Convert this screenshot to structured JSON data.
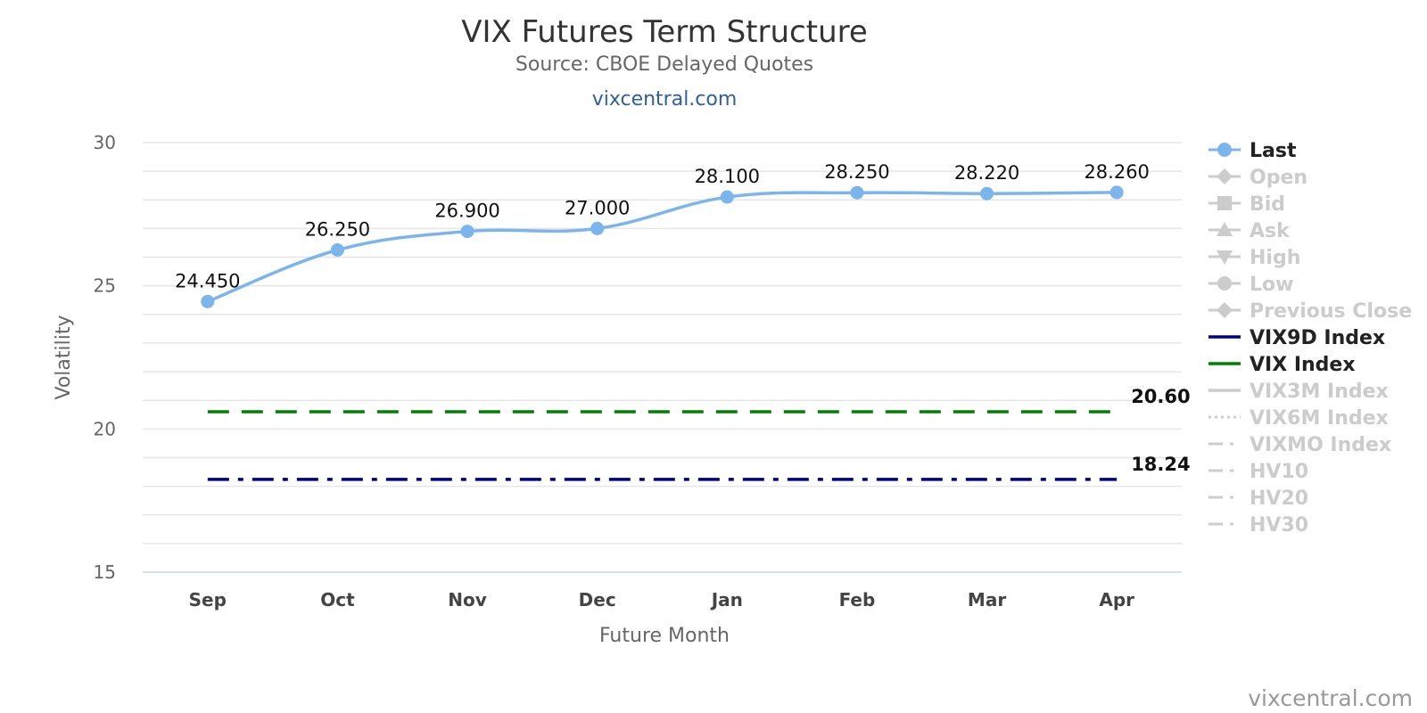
{
  "header": {
    "title": "VIX Futures Term Structure",
    "subtitle": "Source: CBOE Delayed Quotes",
    "link": "vixcentral.com"
  },
  "credit": "vixcentral.com",
  "chart_data": {
    "type": "line",
    "title": "VIX Futures Term Structure",
    "subtitle": "Source: CBOE Delayed Quotes",
    "xlabel": "Future Month",
    "ylabel": "Volatility",
    "categories": [
      "Sep",
      "Oct",
      "Nov",
      "Dec",
      "Jan",
      "Feb",
      "Mar",
      "Apr"
    ],
    "ylim": [
      15,
      30
    ],
    "yticks": [
      15,
      20,
      25,
      30
    ],
    "grid": true,
    "legend_position": "right",
    "series": [
      {
        "name": "Last",
        "values": [
          24.45,
          26.25,
          26.9,
          27.0,
          28.1,
          28.25,
          28.22,
          28.26
        ],
        "labels": [
          "24.450",
          "26.250",
          "26.900",
          "27.000",
          "28.100",
          "28.250",
          "28.220",
          "28.260"
        ],
        "color": "#7cb5ec",
        "style": "spline-markers"
      }
    ],
    "reference_lines": [
      {
        "name": "VIX Index",
        "value": 20.6,
        "label": "20.60",
        "color": "#008000",
        "dash": "dash"
      },
      {
        "name": "VIX9D Index",
        "value": 18.24,
        "label": "18.24",
        "color": "#000080",
        "dash": "dashdot"
      }
    ],
    "legend": [
      {
        "name": "Last",
        "symbol": "circle",
        "color": "#7cb5ec",
        "active": true
      },
      {
        "name": "Open",
        "symbol": "diamond",
        "color": "#cccccc",
        "active": false
      },
      {
        "name": "Bid",
        "symbol": "square",
        "color": "#cccccc",
        "active": false
      },
      {
        "name": "Ask",
        "symbol": "triangle",
        "color": "#cccccc",
        "active": false
      },
      {
        "name": "High",
        "symbol": "triangle-down",
        "color": "#cccccc",
        "active": false
      },
      {
        "name": "Low",
        "symbol": "circle",
        "color": "#cccccc",
        "active": false
      },
      {
        "name": "Previous Close",
        "symbol": "diamond",
        "color": "#cccccc",
        "active": false
      },
      {
        "name": "VIX9D Index",
        "symbol": "line",
        "color": "#000080",
        "active": true
      },
      {
        "name": "VIX Index",
        "symbol": "line",
        "color": "#008000",
        "active": true
      },
      {
        "name": "VIX3M Index",
        "symbol": "line",
        "color": "#cccccc",
        "active": false
      },
      {
        "name": "VIX6M Index",
        "symbol": "dotted",
        "color": "#cccccc",
        "active": false
      },
      {
        "name": "VIXMO Index",
        "symbol": "dashdot",
        "color": "#cccccc",
        "active": false
      },
      {
        "name": "HV10",
        "symbol": "dashdot",
        "color": "#cccccc",
        "active": false
      },
      {
        "name": "HV20",
        "symbol": "dashdot",
        "color": "#cccccc",
        "active": false
      },
      {
        "name": "HV30",
        "symbol": "dashdot",
        "color": "#cccccc",
        "active": false
      }
    ]
  }
}
